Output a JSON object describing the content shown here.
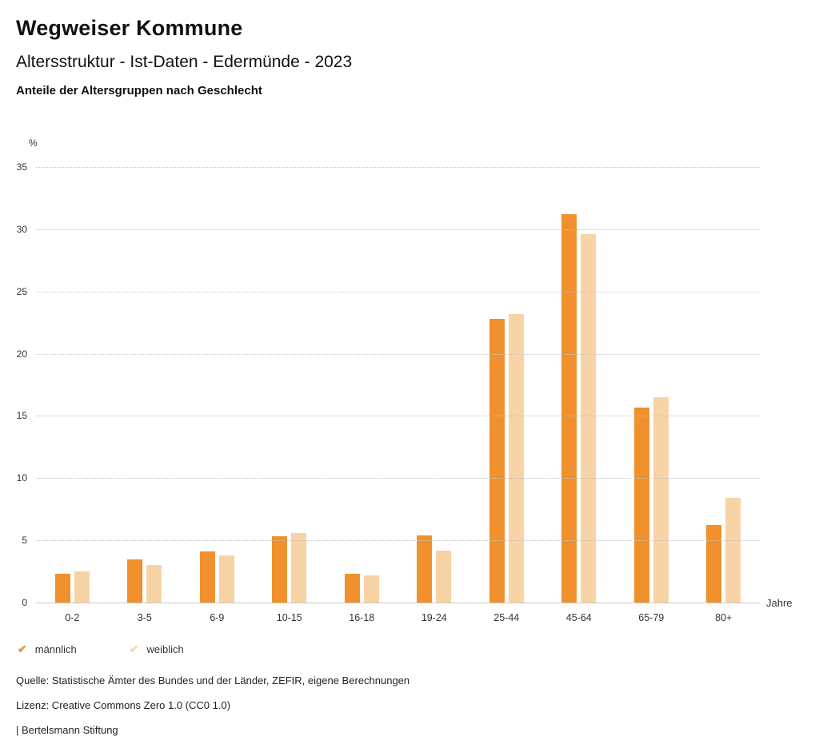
{
  "header": {
    "title": "Wegweiser Kommune",
    "subtitle": "Altersstruktur - Ist-Daten - Edermünde - 2023",
    "chart_title": "Anteile der Altersgruppen nach Geschlecht"
  },
  "chart_data": {
    "type": "bar",
    "categories": [
      "0-2",
      "3-5",
      "6-9",
      "10-15",
      "16-18",
      "19-24",
      "25-44",
      "45-64",
      "65-79",
      "80+"
    ],
    "series": [
      {
        "name": "männlich",
        "color": "#F0912D",
        "values": [
          2.3,
          3.5,
          4.1,
          5.3,
          2.3,
          5.4,
          22.8,
          31.2,
          15.7,
          6.2
        ]
      },
      {
        "name": "weiblich",
        "color": "#F8D3A5",
        "values": [
          2.5,
          3.0,
          3.8,
          5.6,
          2.2,
          4.2,
          23.2,
          29.6,
          16.5,
          8.4
        ]
      }
    ],
    "title": "Anteile der Altersgruppen nach Geschlecht",
    "xlabel": "Jahre",
    "ylabel": "%",
    "ylim": [
      0,
      35
    ],
    "yticks": [
      0,
      5,
      10,
      15,
      20,
      25,
      30,
      35
    ],
    "grid": true,
    "legend_position": "bottom"
  },
  "legend": {
    "check_icon": "✔"
  },
  "footer": {
    "source": "Quelle: Statistische Ämter des Bundes und der Länder, ZEFIR, eigene Berechnungen",
    "license": "Lizenz: Creative Commons Zero 1.0 (CC0 1.0)",
    "attribution": "| Bertelsmann Stiftung"
  }
}
